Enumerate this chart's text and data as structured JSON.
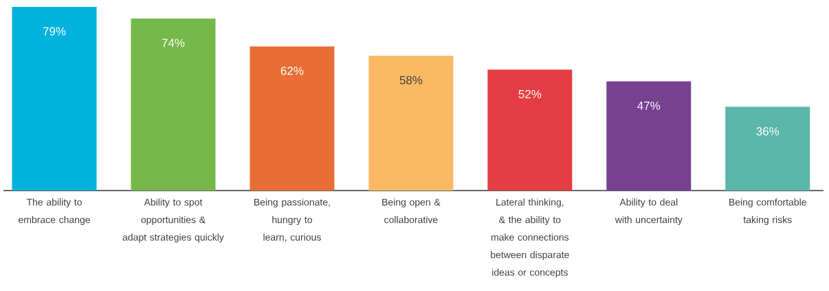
{
  "chart_data": {
    "type": "bar",
    "categories": [
      "The ability to embrace change",
      "Ability to spot opportunities & adapt strategies quickly",
      "Being passionate, hungry to learn, curious",
      "Being open & collaborative",
      "Lateral thinking, & the ability to make connections between disparate ideas or concepts",
      "Ability to deal with uncertainty",
      "Being comfortable taking risks"
    ],
    "values": [
      79,
      74,
      62,
      58,
      52,
      47,
      36
    ],
    "value_labels": [
      "79%",
      "74%",
      "62%",
      "58%",
      "52%",
      "47%",
      "36%"
    ],
    "colors": [
      "#00b2dc",
      "#76b84a",
      "#e86e35",
      "#fbb862",
      "#e43d44",
      "#76418f",
      "#5bb7a9"
    ]
  }
}
